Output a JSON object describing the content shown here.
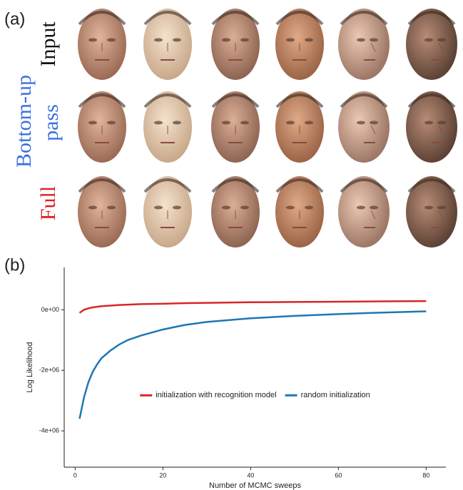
{
  "panels": [
    "(a)",
    "(b)"
  ],
  "row_labels": [
    "Input",
    "Bottom-up",
    "pass",
    "Full"
  ],
  "chart_data": {
    "type": "line",
    "x_label": "Number of MCMC sweeps",
    "y_label": "Log Likelihood",
    "x": [
      1,
      2,
      3,
      4,
      5,
      6,
      8,
      10,
      12,
      15,
      20,
      25,
      30,
      40,
      50,
      60,
      70,
      80
    ],
    "series": [
      {
        "name": "initialization with recognition model",
        "color": "#d62728",
        "values": [
          -100000,
          0,
          50000,
          80000,
          100000,
          120000,
          140000,
          160000,
          170000,
          190000,
          200000,
          220000,
          230000,
          250000,
          260000,
          270000,
          280000,
          290000
        ]
      },
      {
        "name": "random initialization",
        "color": "#1f77b4",
        "values": [
          -3600000,
          -2900000,
          -2400000,
          -2050000,
          -1800000,
          -1600000,
          -1350000,
          -1150000,
          -1000000,
          -850000,
          -650000,
          -500000,
          -400000,
          -280000,
          -200000,
          -140000,
          -90000,
          -50000
        ]
      }
    ],
    "xlim": [
      -2.5,
      84.5
    ],
    "xticks": [
      0,
      20,
      40,
      60,
      80
    ],
    "ylim": [
      -5200000,
      1400000
    ],
    "yticks": [
      {
        "value": 0,
        "label": "0e+00"
      },
      {
        "value": -2000000,
        "label": "-2e+06"
      },
      {
        "value": -4000000,
        "label": "-4e+06"
      }
    ],
    "legend": "center"
  }
}
